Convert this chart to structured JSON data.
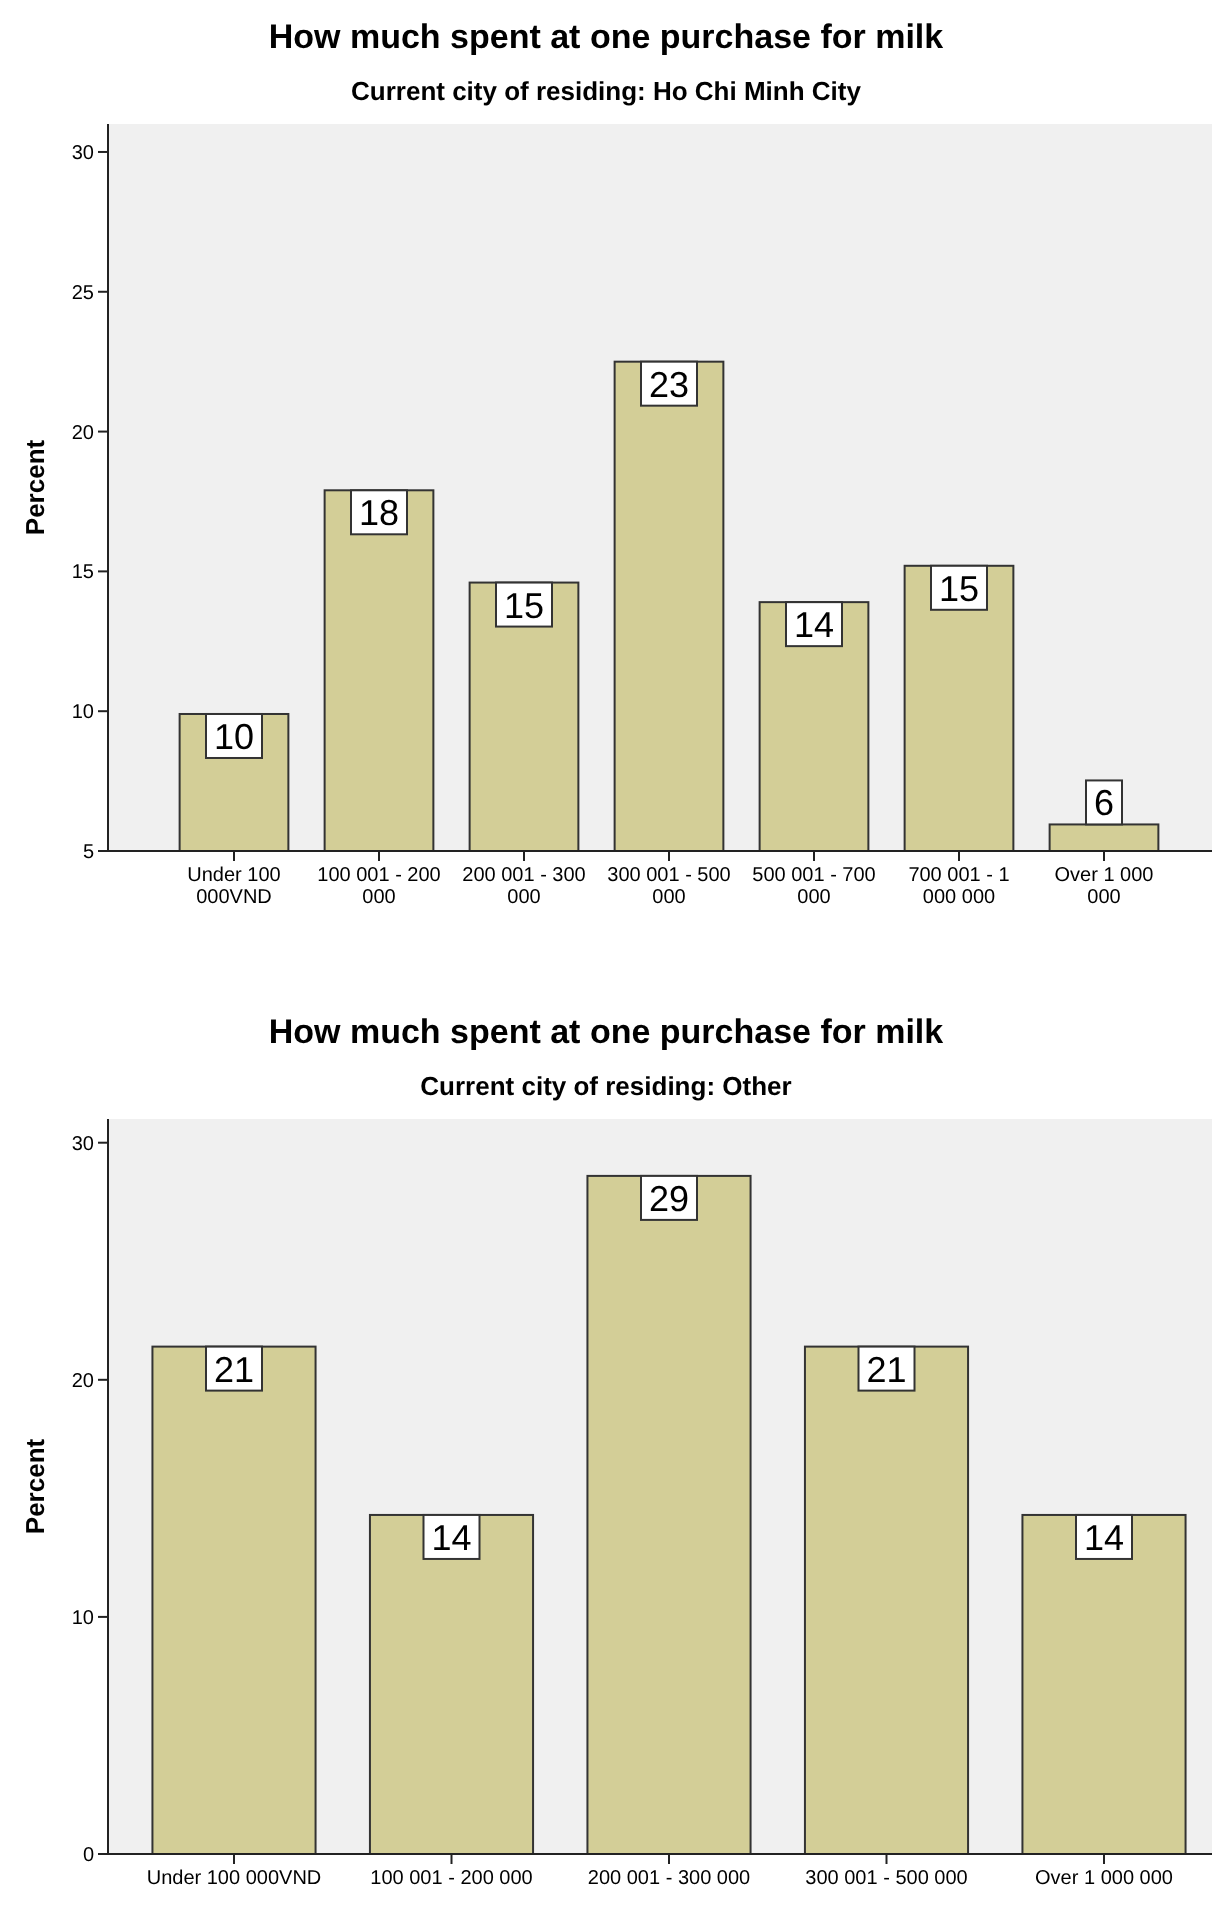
{
  "chart_data": [
    {
      "type": "bar",
      "title": "How much spent at one purchase for milk",
      "subtitle": "Current city of residing: Ho Chi Minh City",
      "ylabel": "Percent",
      "categories": [
        "Under 100 000VND",
        "100 001 - 200 000",
        "200 001 - 300 000",
        "300 001 - 500 000",
        "500 001 - 700 000",
        "700 001 - 1 000 000",
        "Over 1 000 000"
      ],
      "values": [
        9.9,
        17.9,
        14.6,
        22.5,
        13.9,
        15.2,
        5.95
      ],
      "value_labels": [
        "10",
        "18",
        "15",
        "23",
        "14",
        "15",
        "6"
      ],
      "color": "#d3ce97",
      "ylim": [
        5,
        31
      ],
      "yticks": [
        5,
        10,
        15,
        20,
        25,
        30
      ]
    },
    {
      "type": "bar",
      "title": "How much spent at one purchase for milk",
      "subtitle": "Current city of residing: Other",
      "ylabel": "Percent",
      "categories": [
        "Under 100 000VND",
        "100 001 - 200 000",
        "200 001 - 300 000",
        "300 001 - 500 000",
        "Over 1 000 000"
      ],
      "values": [
        21.4,
        14.3,
        28.6,
        21.4,
        14.3
      ],
      "value_labels": [
        "21",
        "14",
        "29",
        "21",
        "14"
      ],
      "color": "#d3ce97",
      "ylim": [
        0,
        31
      ],
      "yticks": [
        0,
        10,
        20,
        30
      ]
    }
  ]
}
